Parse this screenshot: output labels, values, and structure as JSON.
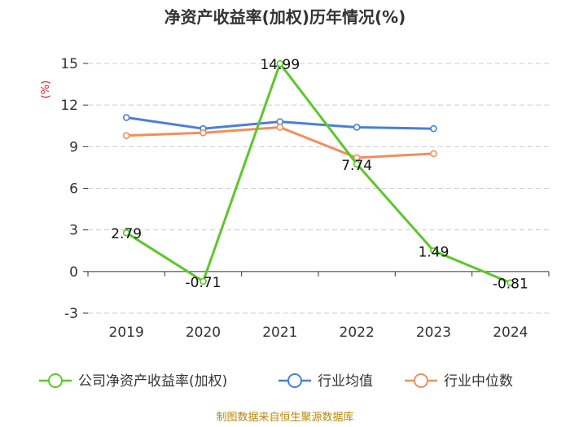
{
  "chart_data": {
    "type": "line",
    "title": "净资产收益率(加权)历年情况(%)",
    "ylabel": "(%)",
    "xlabel": "",
    "categories": [
      "2019",
      "2020",
      "2021",
      "2022",
      "2023",
      "2024"
    ],
    "ylim": [
      -3,
      15
    ],
    "yticks": [
      -3,
      0,
      3,
      6,
      9,
      12,
      15
    ],
    "grid": true,
    "legend_position": "bottom",
    "series": [
      {
        "name": "公司净资产收益率(加权)",
        "color": "#5cc72b",
        "values": [
          2.79,
          -0.71,
          14.99,
          7.74,
          1.49,
          -0.81
        ],
        "labels": [
          "2.79",
          "-0.71",
          "14.99",
          "7.74",
          "1.49",
          "-0.81"
        ]
      },
      {
        "name": "行业均值",
        "color": "#4a7fdc",
        "values": [
          11.1,
          10.3,
          10.8,
          10.4,
          10.3,
          null
        ]
      },
      {
        "name": "行业中位数",
        "color": "#f28e5c",
        "values": [
          9.8,
          10.0,
          10.4,
          8.2,
          8.5,
          null
        ]
      }
    ]
  },
  "source_text": "制图数据来自恒生聚源数据库"
}
